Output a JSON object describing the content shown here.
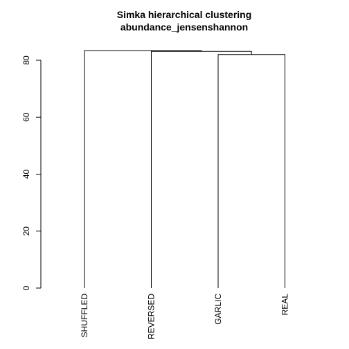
{
  "chart_data": {
    "type": "dendrogram",
    "title": "Simka hierarchical clustering",
    "subtitle": "abundance_jensenshannon",
    "xlabel": "",
    "ylabel": "",
    "ylim": [
      0,
      84
    ],
    "yticks": [
      0,
      20,
      40,
      60,
      80
    ],
    "grid": false,
    "legend": "none",
    "leaves": [
      "SHUFFLED",
      "REVERSED",
      "GARLIC",
      "REAL"
    ],
    "merges": [
      {
        "left": "GARLIC",
        "right": "REAL",
        "height": 82.0
      },
      {
        "left": "REVERSED",
        "right": "GARLIC+REAL",
        "height": 83.1
      },
      {
        "left": "SHUFFLED",
        "right": "REVERSED+GARLIC+REAL",
        "height": 83.4
      }
    ]
  }
}
